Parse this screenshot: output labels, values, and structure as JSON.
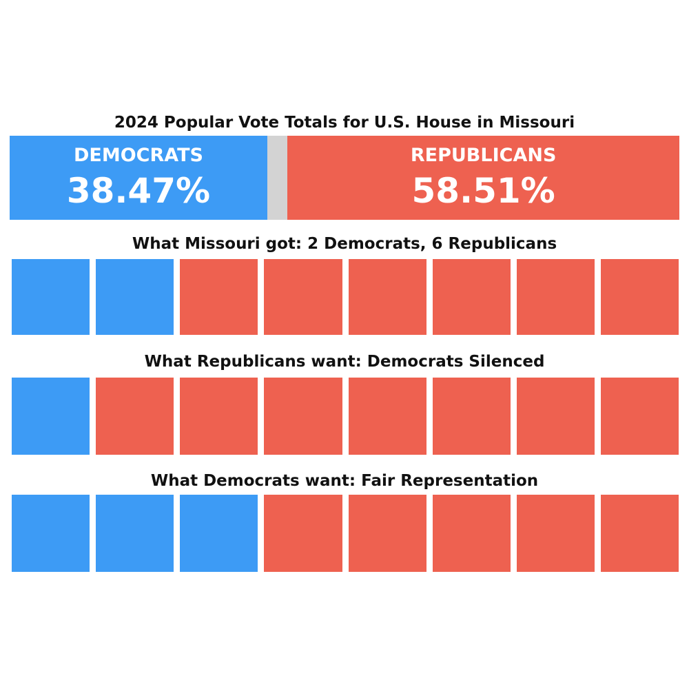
{
  "title": "2024 Popular Vote Totals for U.S. House in Missouri",
  "colors": {
    "democrat": "#3d9bf5",
    "republican": "#ee6150",
    "other": "#d3d3d3"
  },
  "chart_data": [
    {
      "type": "bar",
      "orientation": "horizontal-stacked",
      "title": "2024 Popular Vote Totals for U.S. House in Missouri",
      "segments": [
        {
          "party": "democrat",
          "label": "DEMOCRATS",
          "value": 38.47,
          "display": "38.47%"
        },
        {
          "party": "other",
          "label": "",
          "value": 3.02,
          "display": ""
        },
        {
          "party": "republican",
          "label": "REPUBLICANS",
          "value": 58.51,
          "display": "58.51%"
        }
      ]
    },
    {
      "type": "table",
      "title": "What Missouri got: 2 Democrats, 6 Republicans",
      "seats": [
        "democrat",
        "democrat",
        "republican",
        "republican",
        "republican",
        "republican",
        "republican",
        "republican"
      ]
    },
    {
      "type": "table",
      "title": "What Republicans want: Democrats Silenced",
      "seats": [
        "democrat",
        "republican",
        "republican",
        "republican",
        "republican",
        "republican",
        "republican",
        "republican"
      ]
    },
    {
      "type": "table",
      "title": "What Democrats want: Fair Representation",
      "seats": [
        "democrat",
        "democrat",
        "democrat",
        "republican",
        "republican",
        "republican",
        "republican",
        "republican"
      ]
    }
  ]
}
